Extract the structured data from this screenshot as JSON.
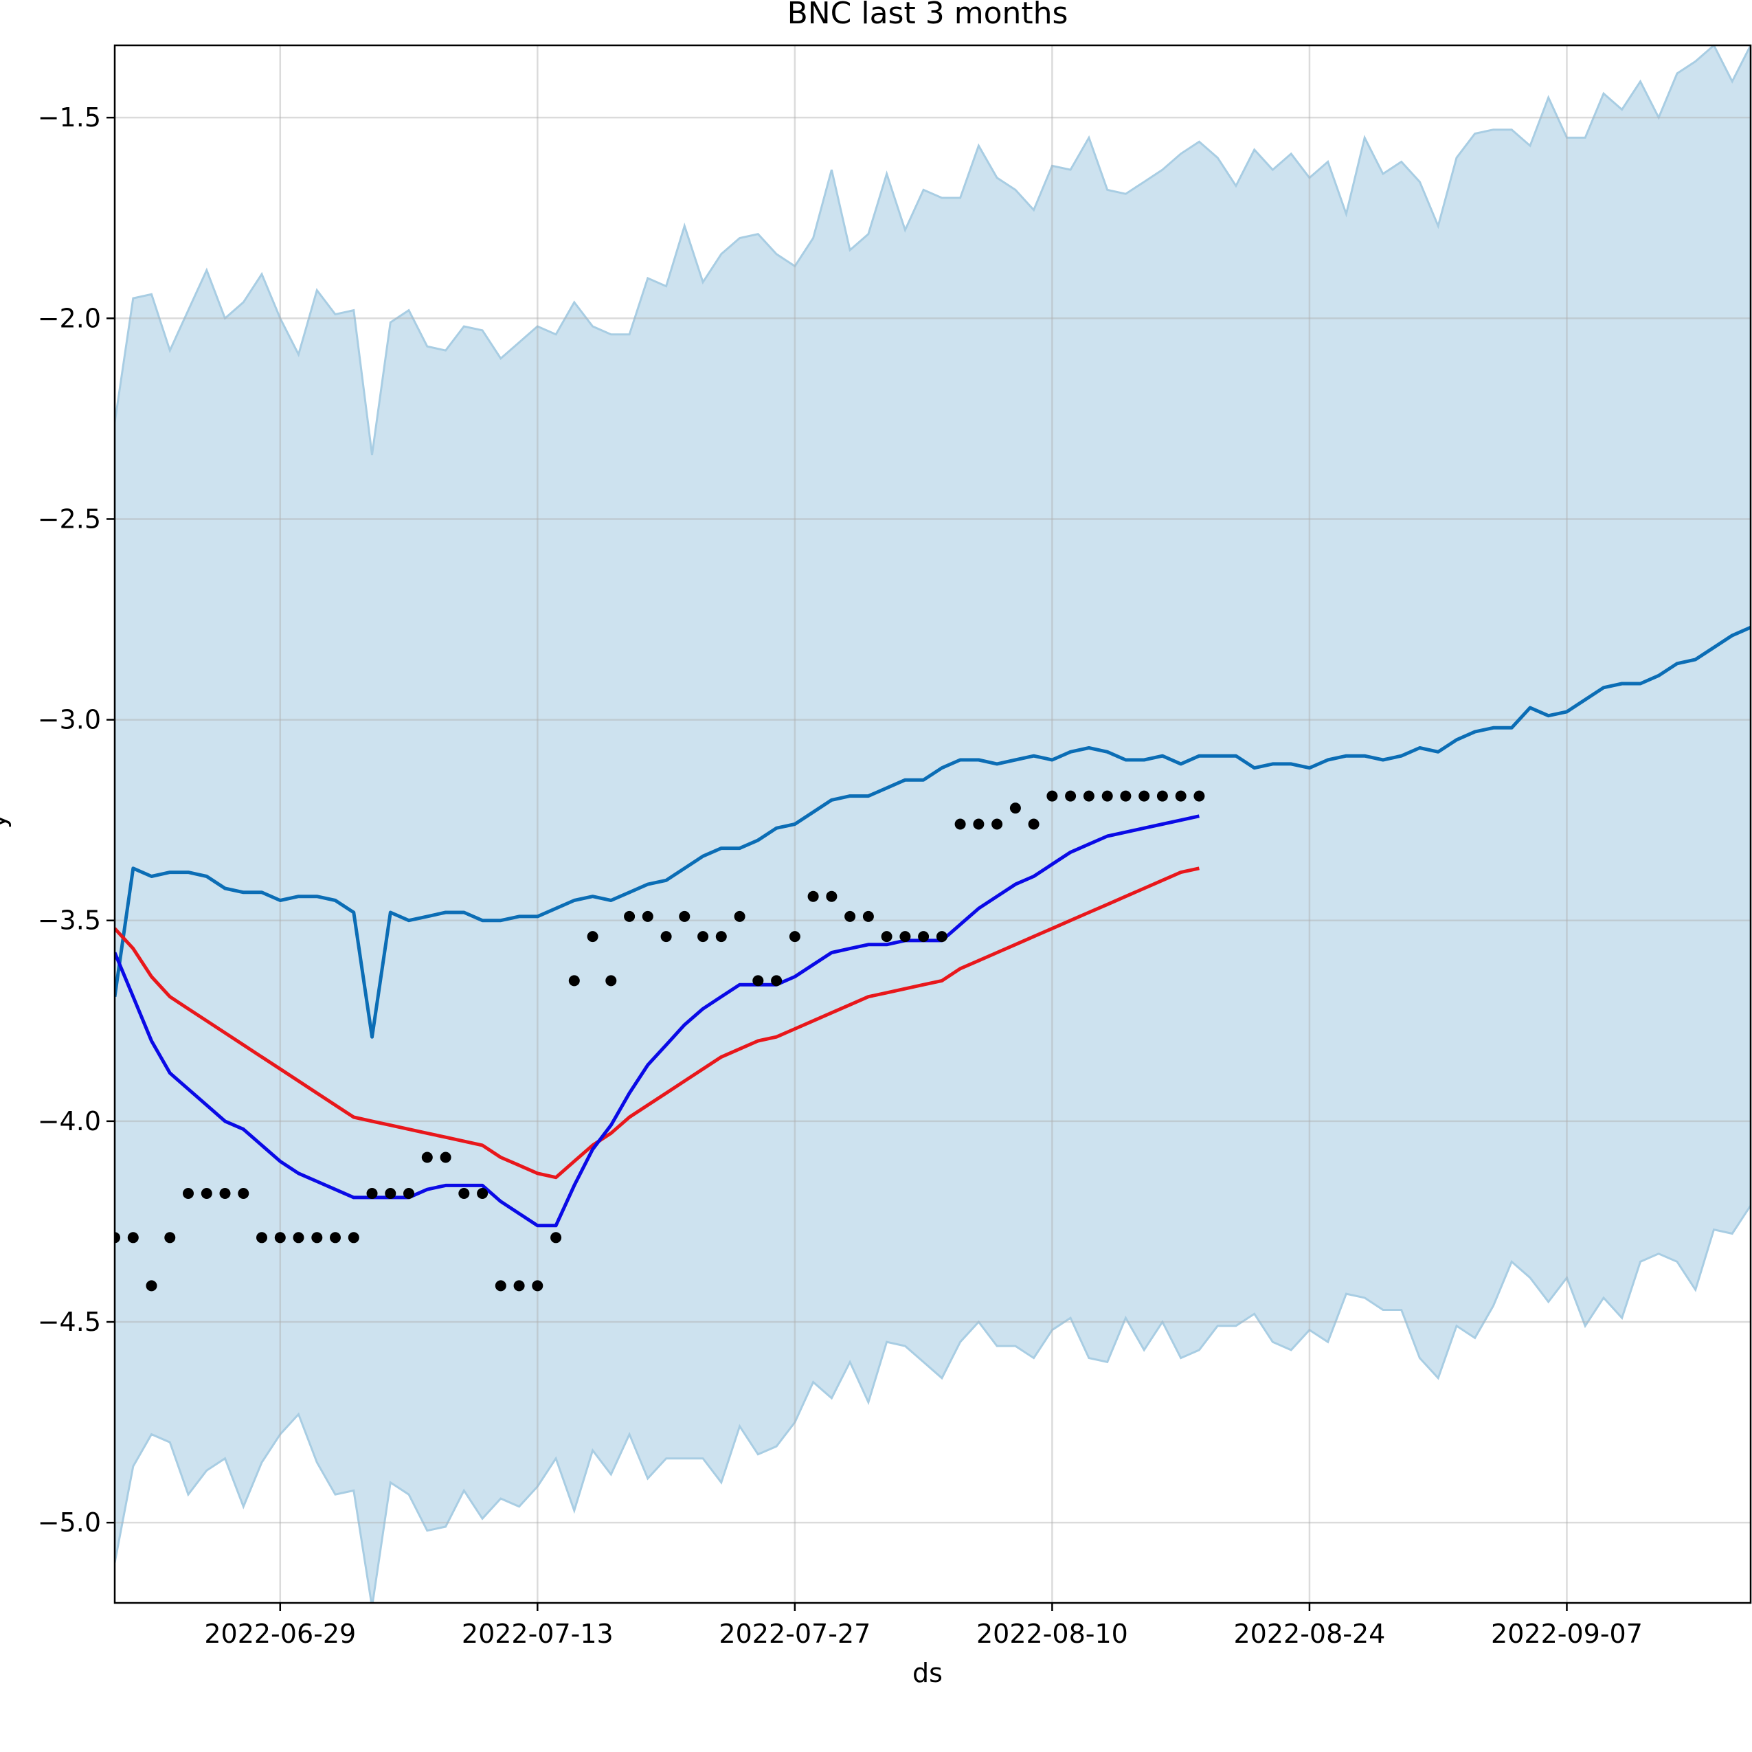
{
  "chart_data": {
    "type": "line",
    "title": "BNC last 3 months",
    "xlabel": "ds",
    "ylabel": "y",
    "x_tick_labels": [
      "2022-06-29",
      "2022-07-13",
      "2022-07-27",
      "2022-08-10",
      "2022-08-24",
      "2022-09-07"
    ],
    "y_tick_labels": [
      "−1.5",
      "−2.0",
      "−2.5",
      "−3.0",
      "−3.5",
      "−4.0",
      "−4.5",
      "−5.0"
    ],
    "y_ticks": [
      -1.5,
      -2.0,
      -2.5,
      -3.0,
      -3.5,
      -4.0,
      -4.5,
      -5.0
    ],
    "xlim": [
      "2022-06-20",
      "2022-09-17"
    ],
    "ylim": [
      -5.2,
      -1.32
    ],
    "grid": true,
    "colors": {
      "band": "#cde2ef",
      "band_edge": "#a8cde3",
      "forecast": "#0b6db5",
      "red_line": "#e8171b",
      "blue_line": "#0a0ae6",
      "points": "#000000",
      "grid": "#d9d9d9"
    },
    "series": [
      {
        "kind": "band",
        "start_date": "2022-06-20",
        "upper": [
          -2.26,
          -1.95,
          -1.94,
          -2.08,
          -1.98,
          -1.88,
          -2.0,
          -1.96,
          -1.89,
          -2.0,
          -2.09,
          -1.93,
          -1.99,
          -1.98,
          -2.34,
          -2.01,
          -1.98,
          -2.07,
          -2.08,
          -2.02,
          -2.03,
          -2.1,
          -2.06,
          -2.02,
          -2.04,
          -1.96,
          -2.02,
          -2.04,
          -2.04,
          -1.9,
          -1.92,
          -1.77,
          -1.91,
          -1.84,
          -1.8,
          -1.79,
          -1.84,
          -1.87,
          -1.8,
          -1.63,
          -1.83,
          -1.79,
          -1.64,
          -1.78,
          -1.68,
          -1.7,
          -1.7,
          -1.57,
          -1.65,
          -1.68,
          -1.73,
          -1.62,
          -1.63,
          -1.55,
          -1.68,
          -1.69,
          -1.66,
          -1.63,
          -1.59,
          -1.56,
          -1.6,
          -1.67,
          -1.58,
          -1.63,
          -1.59,
          -1.65,
          -1.61,
          -1.74,
          -1.55,
          -1.64,
          -1.61,
          -1.66,
          -1.77,
          -1.6,
          -1.54,
          -1.53,
          -1.53,
          -1.57,
          -1.45,
          -1.55,
          -1.55,
          -1.44,
          -1.48,
          -1.41,
          -1.5,
          -1.39,
          -1.36,
          -1.32,
          -1.41,
          -1.32
        ],
        "lower": [
          -5.1,
          -4.86,
          -4.78,
          -4.8,
          -4.93,
          -4.87,
          -4.84,
          -4.96,
          -4.85,
          -4.78,
          -4.73,
          -4.85,
          -4.93,
          -4.92,
          -5.21,
          -4.9,
          -4.93,
          -5.02,
          -5.01,
          -4.92,
          -4.99,
          -4.94,
          -4.96,
          -4.91,
          -4.84,
          -4.97,
          -4.82,
          -4.88,
          -4.78,
          -4.89,
          -4.84,
          -4.84,
          -4.84,
          -4.9,
          -4.76,
          -4.83,
          -4.81,
          -4.75,
          -4.65,
          -4.69,
          -4.6,
          -4.7,
          -4.55,
          -4.56,
          -4.6,
          -4.64,
          -4.55,
          -4.5,
          -4.56,
          -4.56,
          -4.59,
          -4.52,
          -4.49,
          -4.59,
          -4.6,
          -4.49,
          -4.57,
          -4.5,
          -4.59,
          -4.57,
          -4.51,
          -4.51,
          -4.48,
          -4.55,
          -4.57,
          -4.52,
          -4.55,
          -4.43,
          -4.44,
          -4.47,
          -4.47,
          -4.59,
          -4.64,
          -4.51,
          -4.54,
          -4.46,
          -4.35,
          -4.39,
          -4.45,
          -4.39,
          -4.51,
          -4.44,
          -4.49,
          -4.35,
          -4.33,
          -4.35,
          -4.42,
          -4.27,
          -4.28,
          -4.21
        ]
      },
      {
        "kind": "line",
        "role": "forecast",
        "start_date": "2022-06-20",
        "values": [
          -3.69,
          -3.37,
          -3.39,
          -3.38,
          -3.38,
          -3.39,
          -3.42,
          -3.43,
          -3.43,
          -3.45,
          -3.44,
          -3.44,
          -3.45,
          -3.48,
          -3.79,
          -3.48,
          -3.5,
          -3.49,
          -3.48,
          -3.48,
          -3.5,
          -3.5,
          -3.49,
          -3.49,
          -3.47,
          -3.45,
          -3.44,
          -3.45,
          -3.43,
          -3.41,
          -3.4,
          -3.37,
          -3.34,
          -3.32,
          -3.32,
          -3.3,
          -3.27,
          -3.26,
          -3.23,
          -3.2,
          -3.19,
          -3.19,
          -3.17,
          -3.15,
          -3.15,
          -3.12,
          -3.1,
          -3.1,
          -3.11,
          -3.1,
          -3.09,
          -3.1,
          -3.08,
          -3.07,
          -3.08,
          -3.1,
          -3.1,
          -3.09,
          -3.11,
          -3.09,
          -3.09,
          -3.09,
          -3.12,
          -3.11,
          -3.11,
          -3.12,
          -3.1,
          -3.09,
          -3.09,
          -3.1,
          -3.09,
          -3.07,
          -3.08,
          -3.05,
          -3.03,
          -3.02,
          -3.02,
          -2.97,
          -2.99,
          -2.98,
          -2.95,
          -2.92,
          -2.91,
          -2.91,
          -2.89,
          -2.86,
          -2.85,
          -2.82,
          -2.79,
          -2.77
        ]
      },
      {
        "kind": "line",
        "role": "red",
        "start_date": "2022-06-20",
        "values": [
          -3.52,
          -3.57,
          -3.64,
          -3.69,
          -3.72,
          -3.75,
          -3.78,
          -3.81,
          -3.84,
          -3.87,
          -3.9,
          -3.93,
          -3.96,
          -3.99,
          -4.0,
          -4.01,
          -4.02,
          -4.03,
          -4.04,
          -4.05,
          -4.06,
          -4.09,
          -4.11,
          -4.13,
          -4.14,
          -4.1,
          -4.06,
          -4.03,
          -3.99,
          -3.96,
          -3.93,
          -3.9,
          -3.87,
          -3.84,
          -3.82,
          -3.8,
          -3.79,
          -3.77,
          -3.75,
          -3.73,
          -3.71,
          -3.69,
          -3.68,
          -3.67,
          -3.66,
          -3.65,
          -3.62,
          -3.6,
          -3.58,
          -3.56,
          -3.54,
          -3.52,
          -3.5,
          -3.48,
          -3.46,
          -3.44,
          -3.42,
          -3.4,
          -3.38,
          -3.37
        ]
      },
      {
        "kind": "line",
        "role": "blue",
        "start_date": "2022-06-20",
        "values": [
          -3.58,
          -3.69,
          -3.8,
          -3.88,
          -3.92,
          -3.96,
          -4.0,
          -4.02,
          -4.06,
          -4.1,
          -4.13,
          -4.15,
          -4.17,
          -4.19,
          -4.19,
          -4.19,
          -4.19,
          -4.17,
          -4.16,
          -4.16,
          -4.16,
          -4.2,
          -4.23,
          -4.26,
          -4.26,
          -4.16,
          -4.07,
          -4.01,
          -3.93,
          -3.86,
          -3.81,
          -3.76,
          -3.72,
          -3.69,
          -3.66,
          -3.66,
          -3.66,
          -3.64,
          -3.61,
          -3.58,
          -3.57,
          -3.56,
          -3.56,
          -3.55,
          -3.55,
          -3.55,
          -3.51,
          -3.47,
          -3.44,
          -3.41,
          -3.39,
          -3.36,
          -3.33,
          -3.31,
          -3.29,
          -3.28,
          -3.27,
          -3.26,
          -3.25,
          -3.24
        ]
      },
      {
        "kind": "scatter",
        "role": "observed",
        "start_date": "2022-06-20",
        "values": [
          -4.29,
          -4.29,
          -4.41,
          -4.29,
          -4.18,
          -4.18,
          -4.18,
          -4.18,
          -4.29,
          -4.29,
          -4.29,
          -4.29,
          -4.29,
          -4.29,
          -4.18,
          -4.18,
          -4.18,
          -4.09,
          -4.09,
          -4.18,
          -4.18,
          -4.41,
          -4.41,
          -4.41,
          -4.29,
          -3.65,
          -3.54,
          -3.65,
          -3.49,
          -3.49,
          -3.54,
          -3.49,
          -3.54,
          -3.54,
          -3.49,
          -3.65,
          -3.65,
          -3.54,
          -3.44,
          -3.44,
          -3.49,
          -3.49,
          -3.54,
          -3.54,
          -3.54,
          -3.54,
          -3.26,
          -3.26,
          -3.26,
          -3.22,
          -3.26,
          -3.19,
          -3.19,
          -3.19,
          -3.19,
          -3.19,
          -3.19,
          -3.19,
          -3.19,
          -3.19
        ]
      }
    ]
  }
}
